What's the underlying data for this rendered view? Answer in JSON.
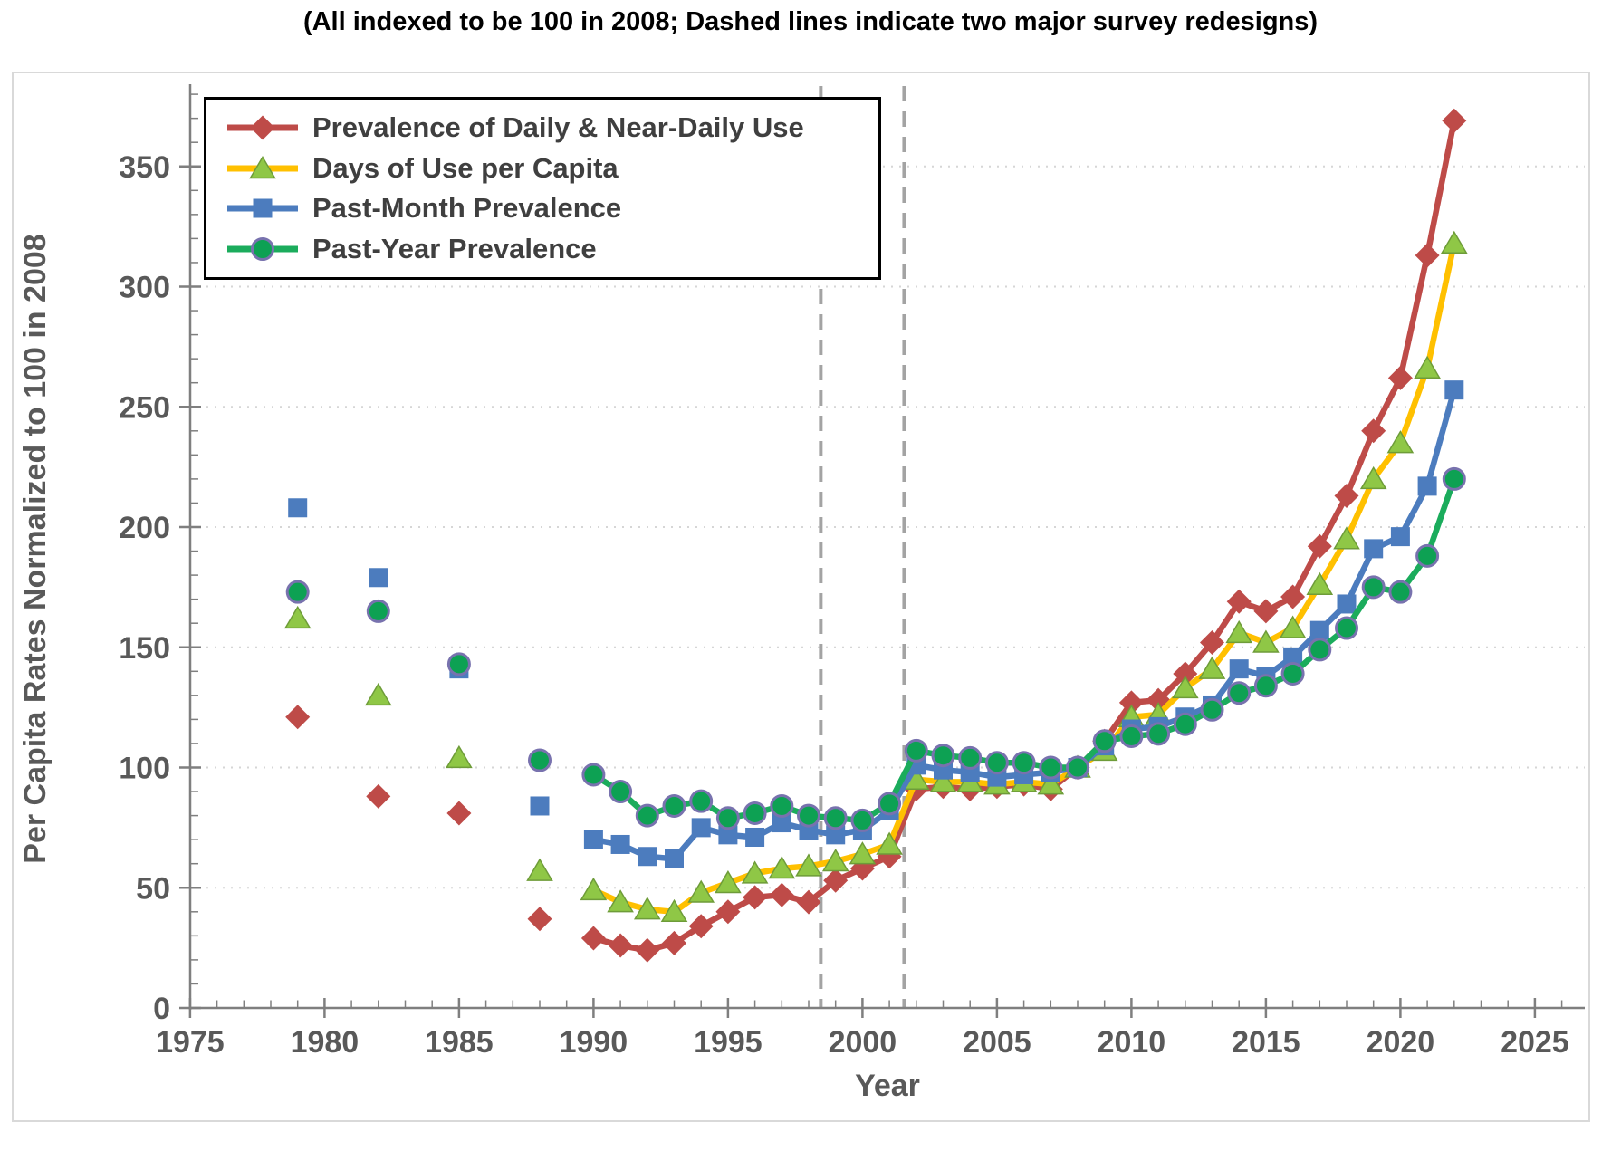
{
  "title": "(All indexed to be 100 in 2008; Dashed lines indicate two major survey redesigns)",
  "chart_data": {
    "type": "line",
    "xlabel": "Year",
    "ylabel": "Per Capita Rates Normalized to 100 in 2008",
    "x_axis": {
      "min": 1975,
      "max": 2027,
      "major_ticks": [
        1975,
        1980,
        1985,
        1990,
        1995,
        2000,
        2005,
        2010,
        2015,
        2020,
        2025
      ],
      "minor_step": 1
    },
    "y_axis": {
      "min": 0,
      "max": 383,
      "major_ticks": [
        0,
        50,
        100,
        150,
        200,
        250,
        300,
        350
      ],
      "minor_step": 10
    },
    "grid": "horizontal-dotted",
    "legend_position": "top-left",
    "line_start_year": 1990,
    "redesign_lines": {
      "years": [
        1998.45,
        2001.55
      ],
      "color": "#A3A3A3",
      "meaning": "two major survey redesigns"
    },
    "colors": {
      "grid": "#D6D6D6",
      "axis": "#7F7F7F",
      "tick_text": "#595959",
      "legend_text": "#3F3F3F",
      "title_text": "#000000",
      "border": "#D9D9D9"
    },
    "series": [
      {
        "name": "Prevalence of Daily & Near-Daily Use",
        "marker": "diamond",
        "color": "#BE4B48",
        "marker_fill": "#BE4B48",
        "points": [
          [
            1979,
            121
          ],
          [
            1982,
            88
          ],
          [
            1985,
            81
          ],
          [
            1988,
            37
          ],
          [
            1990,
            29
          ],
          [
            1991,
            26
          ],
          [
            1992,
            24
          ],
          [
            1993,
            27
          ],
          [
            1994,
            34
          ],
          [
            1995,
            40
          ],
          [
            1996,
            46
          ],
          [
            1997,
            47
          ],
          [
            1998,
            44
          ],
          [
            1999,
            53
          ],
          [
            2000,
            58
          ],
          [
            2001,
            63
          ],
          [
            2002,
            91
          ],
          [
            2003,
            92
          ],
          [
            2004,
            91
          ],
          [
            2005,
            92
          ],
          [
            2006,
            93
          ],
          [
            2007,
            91
          ],
          [
            2008,
            100
          ],
          [
            2009,
            111
          ],
          [
            2010,
            127
          ],
          [
            2011,
            128
          ],
          [
            2012,
            139
          ],
          [
            2013,
            152
          ],
          [
            2014,
            169
          ],
          [
            2015,
            165
          ],
          [
            2016,
            171
          ],
          [
            2017,
            192
          ],
          [
            2018,
            213
          ],
          [
            2019,
            240
          ],
          [
            2020,
            262
          ],
          [
            2021,
            313
          ],
          [
            2022,
            369
          ]
        ]
      },
      {
        "name": "Days of Use per Capita",
        "marker": "triangle",
        "color": "#FFC000",
        "marker_fill": "#8FC746",
        "marker_edge": "#6E9C39",
        "points": [
          [
            1979,
            162
          ],
          [
            1982,
            130
          ],
          [
            1985,
            104
          ],
          [
            1988,
            57
          ],
          [
            1990,
            49
          ],
          [
            1991,
            44
          ],
          [
            1992,
            41
          ],
          [
            1993,
            40
          ],
          [
            1994,
            48
          ],
          [
            1995,
            52
          ],
          [
            1996,
            56
          ],
          [
            1997,
            58
          ],
          [
            1998,
            59
          ],
          [
            1999,
            61
          ],
          [
            2000,
            64
          ],
          [
            2001,
            68
          ],
          [
            2002,
            95
          ],
          [
            2003,
            94
          ],
          [
            2004,
            94
          ],
          [
            2005,
            93
          ],
          [
            2006,
            94
          ],
          [
            2007,
            93
          ],
          [
            2008,
            100
          ],
          [
            2009,
            107
          ],
          [
            2010,
            121
          ],
          [
            2011,
            122
          ],
          [
            2012,
            133
          ],
          [
            2013,
            141
          ],
          [
            2014,
            156
          ],
          [
            2015,
            152
          ],
          [
            2016,
            158
          ],
          [
            2017,
            176
          ],
          [
            2018,
            195
          ],
          [
            2019,
            220
          ],
          [
            2020,
            235
          ],
          [
            2021,
            266
          ],
          [
            2022,
            318
          ]
        ]
      },
      {
        "name": "Past-Month Prevalence",
        "marker": "square",
        "color": "#4C7CBE",
        "marker_fill": "#4C7CBE",
        "points": [
          [
            1979,
            208
          ],
          [
            1982,
            179
          ],
          [
            1985,
            141
          ],
          [
            1988,
            84
          ],
          [
            1990,
            70
          ],
          [
            1991,
            68
          ],
          [
            1992,
            63
          ],
          [
            1993,
            62
          ],
          [
            1994,
            75
          ],
          [
            1995,
            72
          ],
          [
            1996,
            71
          ],
          [
            1997,
            77
          ],
          [
            1998,
            74
          ],
          [
            1999,
            72
          ],
          [
            2000,
            74
          ],
          [
            2001,
            82
          ],
          [
            2002,
            101
          ],
          [
            2003,
            99
          ],
          [
            2004,
            98
          ],
          [
            2005,
            96
          ],
          [
            2006,
            97
          ],
          [
            2007,
            98
          ],
          [
            2008,
            100
          ],
          [
            2009,
            109
          ],
          [
            2010,
            116
          ],
          [
            2011,
            117
          ],
          [
            2012,
            121
          ],
          [
            2013,
            126
          ],
          [
            2014,
            141
          ],
          [
            2015,
            138
          ],
          [
            2016,
            146
          ],
          [
            2017,
            157
          ],
          [
            2018,
            168
          ],
          [
            2019,
            191
          ],
          [
            2020,
            196
          ],
          [
            2021,
            217
          ],
          [
            2022,
            257
          ]
        ]
      },
      {
        "name": "Past-Year Prevalence",
        "marker": "circle",
        "color": "#1BAC5C",
        "marker_fill": "#0DA153",
        "marker_edge": "#7872AE",
        "points": [
          [
            1979,
            173
          ],
          [
            1982,
            165
          ],
          [
            1985,
            143
          ],
          [
            1988,
            103
          ],
          [
            1990,
            97
          ],
          [
            1991,
            90
          ],
          [
            1992,
            80
          ],
          [
            1993,
            84
          ],
          [
            1994,
            86
          ],
          [
            1995,
            79
          ],
          [
            1996,
            81
          ],
          [
            1997,
            84
          ],
          [
            1998,
            80
          ],
          [
            1999,
            79
          ],
          [
            2000,
            78
          ],
          [
            2001,
            85
          ],
          [
            2002,
            107
          ],
          [
            2003,
            105
          ],
          [
            2004,
            104
          ],
          [
            2005,
            102
          ],
          [
            2006,
            102
          ],
          [
            2007,
            100
          ],
          [
            2008,
            100
          ],
          [
            2009,
            111
          ],
          [
            2010,
            113
          ],
          [
            2011,
            114
          ],
          [
            2012,
            118
          ],
          [
            2013,
            124
          ],
          [
            2014,
            131
          ],
          [
            2015,
            134
          ],
          [
            2016,
            139
          ],
          [
            2017,
            149
          ],
          [
            2018,
            158
          ],
          [
            2019,
            175
          ],
          [
            2020,
            173
          ],
          [
            2021,
            188
          ],
          [
            2022,
            220
          ]
        ]
      }
    ]
  }
}
